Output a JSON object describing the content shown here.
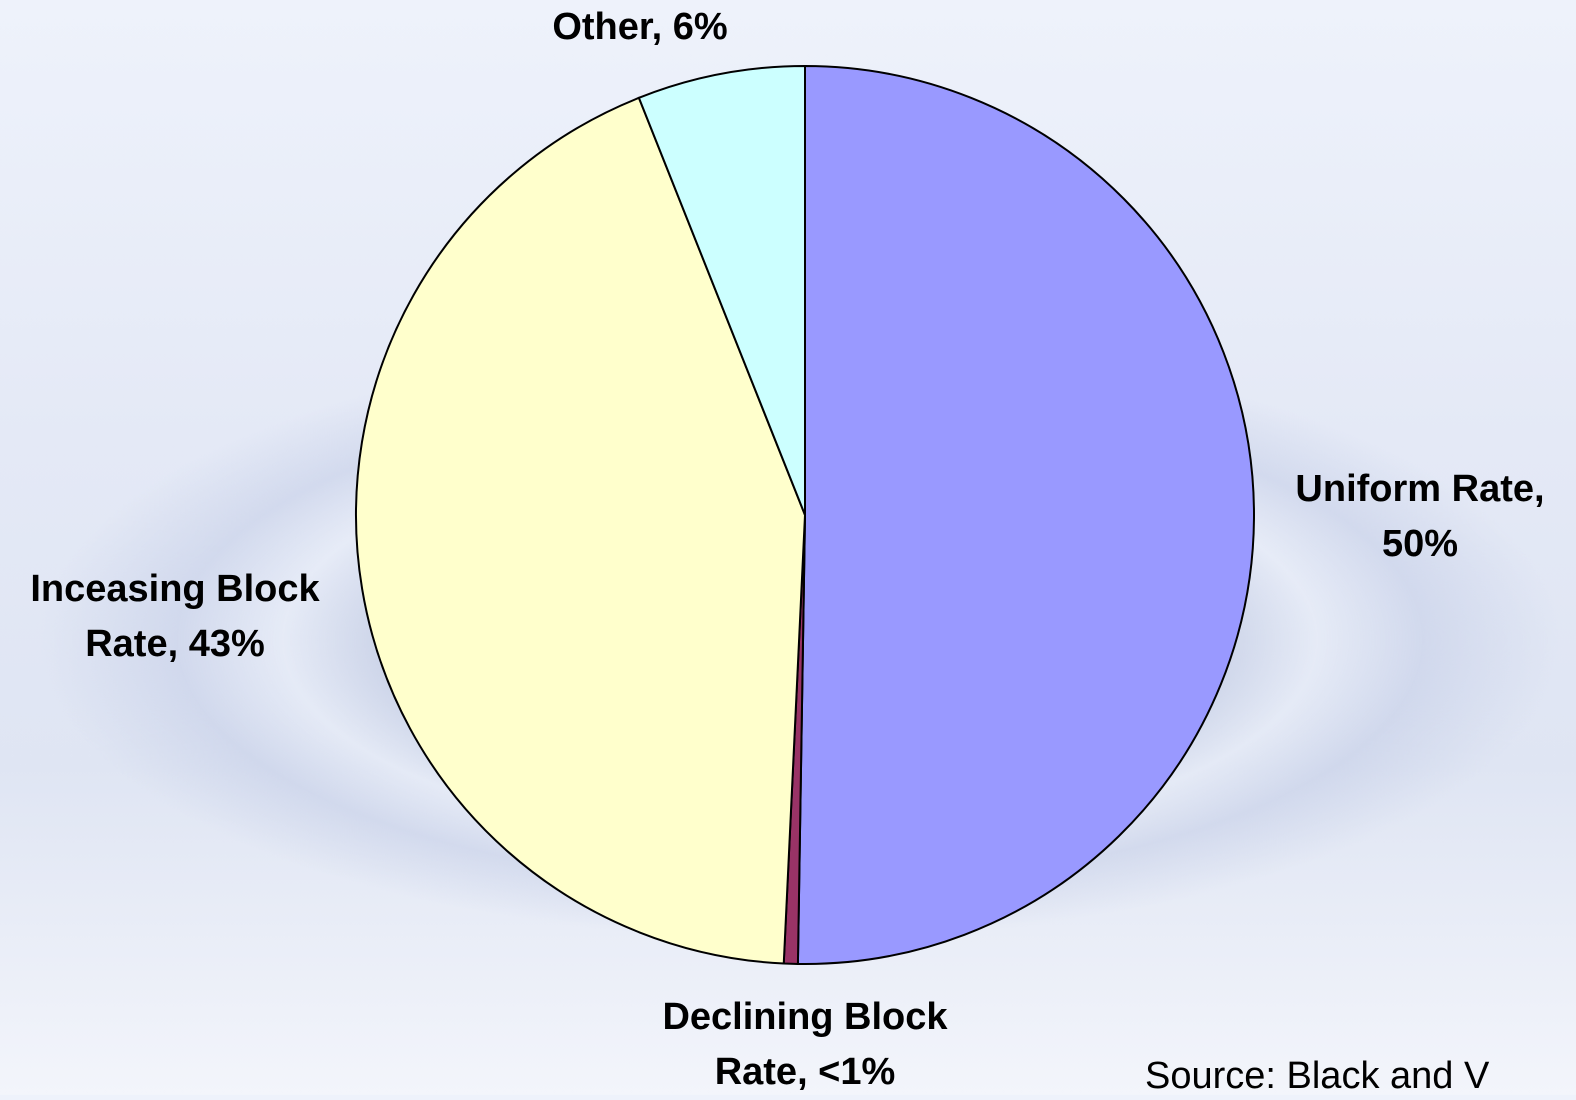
{
  "chart_data": {
    "type": "pie",
    "values": [
      50,
      0.5,
      43,
      6
    ],
    "value_labels": [
      "Uniform Rate, 50%",
      "Declining Block Rate, <1%",
      "Inceasing Block Rate, 43%",
      "Other, 6%"
    ],
    "colors": [
      "#9999ff",
      "#993366",
      "#ffffcc",
      "#ccffff"
    ],
    "source": "Source: Black and V"
  }
}
